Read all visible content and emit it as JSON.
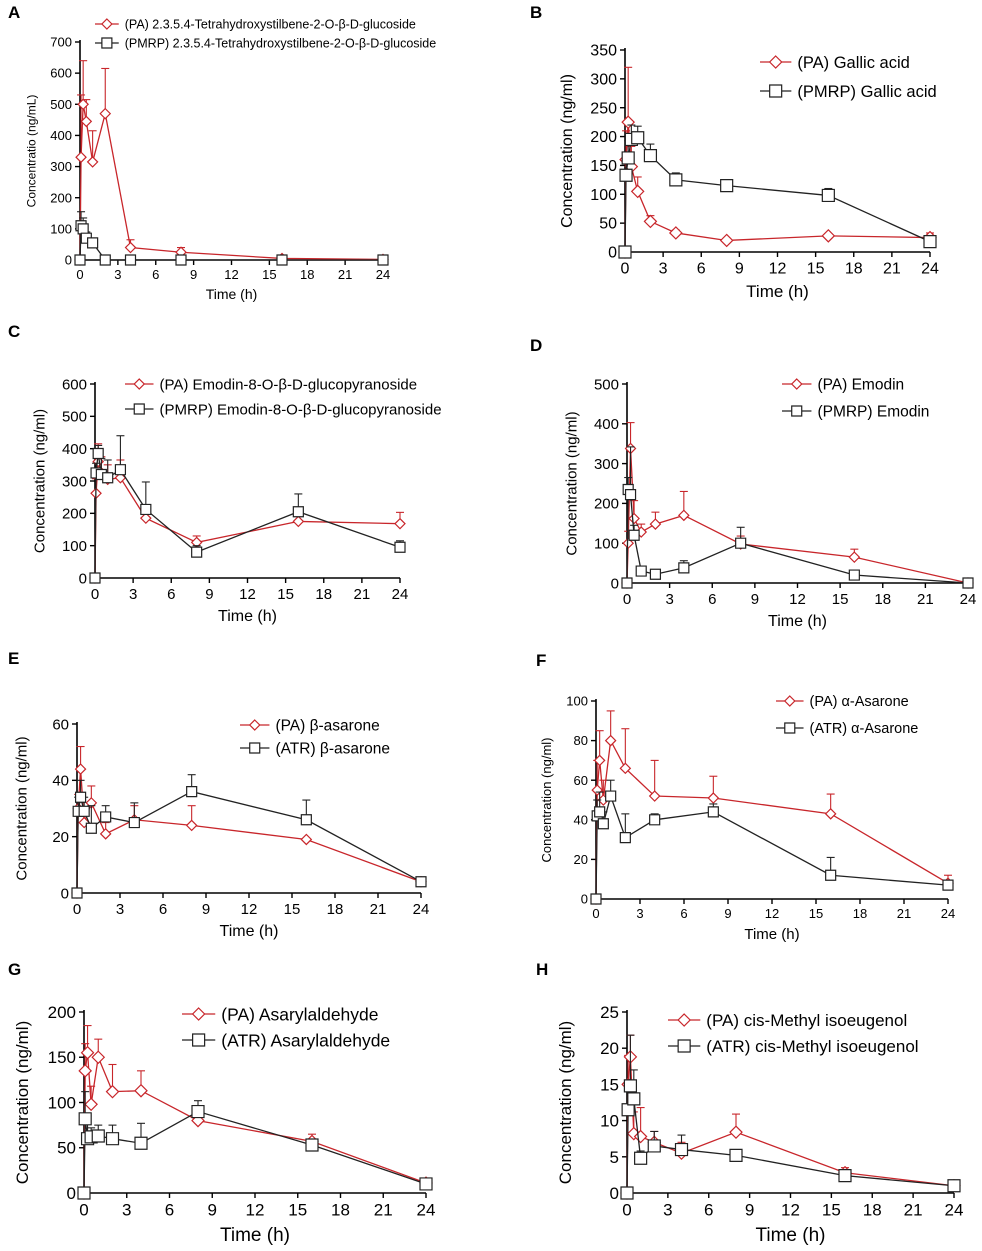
{
  "figure": {
    "colors": {
      "pa": "#c8262b",
      "other": "#222222",
      "axis": "#000000"
    },
    "chart_data": [
      {
        "letter": "A",
        "type": "line",
        "xlabel": "Time (h)",
        "ylabel": "Concentratio (ng/mL)",
        "xlim": [
          0,
          24
        ],
        "ylim": [
          0,
          700
        ],
        "xticks": [
          0,
          3,
          6,
          9,
          12,
          15,
          18,
          21,
          24
        ],
        "yticks": [
          0,
          100,
          200,
          300,
          400,
          500,
          600,
          700
        ],
        "legend": "top-left-small",
        "series": [
          {
            "name": "(PA) 2.3.5.4-Tetrahydroxystilbene-2-O-β-D-glucoside",
            "marker": "diamond",
            "color": "#c8262b",
            "x": [
              0,
              0.083,
              0.25,
              0.5,
              1,
              2,
              4,
              8,
              16,
              24
            ],
            "y": [
              0,
              330,
              500,
              445,
              315,
              470,
              40,
              25,
              5,
              2
            ],
            "err": [
              0,
              200,
              140,
              70,
              100,
              145,
              25,
              15,
              3,
              1
            ]
          },
          {
            "name": "(PMRP) 2.3.5.4-Tetrahydroxystilbene-2-O-β-D-glucoside",
            "marker": "square",
            "color": "#222222",
            "x": [
              0,
              0.083,
              0.25,
              0.5,
              1,
              2,
              4,
              8,
              16,
              24
            ],
            "y": [
              0,
              110,
              100,
              70,
              55,
              0,
              0,
              0,
              0,
              0
            ],
            "err": [
              0,
              45,
              35,
              20,
              15,
              0,
              0,
              0,
              0,
              0
            ]
          }
        ]
      },
      {
        "letter": "B",
        "type": "line",
        "xlabel": "Time (h)",
        "ylabel": "Concentration (ng/ml)",
        "xlim": [
          0,
          24
        ],
        "ylim": [
          0,
          350
        ],
        "xticks": [
          0,
          3,
          6,
          9,
          12,
          15,
          18,
          21,
          24
        ],
        "yticks": [
          0,
          50,
          100,
          150,
          200,
          250,
          300,
          350
        ],
        "legend": "top-right-large",
        "series": [
          {
            "name": "(PA) Gallic acid",
            "marker": "diamond",
            "color": "#c8262b",
            "x": [
              0,
              0.083,
              0.25,
              0.5,
              1,
              2,
              4,
              8,
              16,
              24
            ],
            "y": [
              0,
              160,
              225,
              148,
              105,
              53,
              33,
              20,
              28,
              25
            ],
            "err": [
              0,
              50,
              95,
              35,
              25,
              10,
              5,
              3,
              4,
              8
            ]
          },
          {
            "name": "(PMRP) Gallic acid",
            "marker": "square",
            "color": "#222222",
            "x": [
              0,
              0.083,
              0.25,
              0.5,
              1,
              2,
              4,
              8,
              16,
              24
            ],
            "y": [
              0,
              133,
              163,
              195,
              198,
              167,
              125,
              115,
              98,
              18
            ],
            "err": [
              0,
              30,
              30,
              25,
              20,
              20,
              12,
              10,
              12,
              5
            ]
          }
        ]
      },
      {
        "letter": "C",
        "type": "line",
        "xlabel": "Time (h)",
        "ylabel": "Concentration (ng/ml)",
        "xlim": [
          0,
          24
        ],
        "ylim": [
          0,
          600
        ],
        "xticks": [
          0,
          3,
          6,
          9,
          12,
          15,
          18,
          21,
          24
        ],
        "yticks": [
          0,
          100,
          200,
          300,
          400,
          500,
          600
        ],
        "legend": "top-wide",
        "series": [
          {
            "name": "(PA) Emodin-8-O-β-D-glucopyranoside",
            "marker": "diamond",
            "color": "#c8262b",
            "x": [
              0,
              0.083,
              0.25,
              0.5,
              1,
              2,
              4,
              8,
              16,
              24
            ],
            "y": [
              0,
              262,
              360,
              325,
              305,
              310,
              185,
              110,
              175,
              168
            ],
            "err": [
              0,
              45,
              55,
              50,
              45,
              55,
              30,
              20,
              30,
              35
            ]
          },
          {
            "name": "(PMRP) Emodin-8-O-β-D-glucopyranoside",
            "marker": "square",
            "color": "#222222",
            "x": [
              0,
              0.083,
              0.25,
              0.5,
              1,
              2,
              4,
              8,
              16,
              24
            ],
            "y": [
              0,
              325,
              385,
              320,
              310,
              335,
              212,
              80,
              205,
              95
            ],
            "err": [
              0,
              30,
              25,
              50,
              55,
              105,
              85,
              20,
              55,
              20
            ]
          }
        ]
      },
      {
        "letter": "D",
        "type": "line",
        "xlabel": "Time (h)",
        "ylabel": "Concentration (ng/ml)",
        "xlim": [
          0,
          24
        ],
        "ylim": [
          0,
          500
        ],
        "xticks": [
          0,
          3,
          6,
          9,
          12,
          15,
          18,
          21,
          24
        ],
        "yticks": [
          0,
          100,
          200,
          300,
          400,
          500
        ],
        "legend": "top-right-large",
        "series": [
          {
            "name": "(PA) Emodin",
            "marker": "diamond",
            "color": "#c8262b",
            "x": [
              0,
              0.083,
              0.25,
              0.5,
              1,
              2,
              4,
              8,
              16,
              24
            ],
            "y": [
              0,
              100,
              338,
              162,
              128,
              148,
              170,
              98,
              65,
              0
            ],
            "err": [
              0,
              30,
              65,
              45,
              20,
              30,
              60,
              20,
              20,
              0
            ]
          },
          {
            "name": "(PMRP) Emodin",
            "marker": "square",
            "color": "#222222",
            "x": [
              0,
              0.083,
              0.25,
              0.5,
              1,
              2,
              4,
              8,
              16,
              24
            ],
            "y": [
              0,
              235,
              222,
              120,
              30,
              22,
              38,
              100,
              20,
              0
            ],
            "err": [
              0,
              30,
              120,
              25,
              10,
              10,
              18,
              40,
              8,
              0
            ]
          }
        ]
      },
      {
        "letter": "E",
        "type": "line",
        "xlabel": "Time (h)",
        "ylabel": "Concentration (ng/ml)",
        "xlim": [
          0,
          24
        ],
        "ylim": [
          0,
          60
        ],
        "xticks": [
          0,
          3,
          6,
          9,
          12,
          15,
          18,
          21,
          24
        ],
        "yticks": [
          0,
          20,
          40,
          60
        ],
        "legend": "top-middle",
        "series": [
          {
            "name": "(PA) β-asarone",
            "marker": "diamond",
            "color": "#c8262b",
            "x": [
              0,
              0.083,
              0.25,
              0.5,
              1,
              2,
              4,
              8,
              16,
              24
            ],
            "y": [
              0,
              30,
              44,
              25,
              32,
              21,
              26,
              24,
              19,
              4
            ],
            "err": [
              0,
              5,
              8,
              5,
              6,
              4,
              5,
              7,
              0,
              1
            ]
          },
          {
            "name": "(ATR) β-asarone",
            "marker": "square",
            "color": "#222222",
            "x": [
              0,
              0.083,
              0.25,
              0.5,
              1,
              2,
              4,
              8,
              16,
              24
            ],
            "y": [
              0,
              29,
              34,
              29,
              23,
              27,
              25,
              36,
              26,
              4
            ],
            "err": [
              0,
              5,
              6,
              5,
              8,
              4,
              7,
              6,
              7,
              1
            ]
          }
        ]
      },
      {
        "letter": "F",
        "type": "line",
        "xlabel": "Time (h)",
        "ylabel": "Concentration (ng/ml)",
        "xlim": [
          0,
          24
        ],
        "ylim": [
          0,
          100
        ],
        "xticks": [
          0,
          3,
          6,
          9,
          12,
          15,
          18,
          21,
          24
        ],
        "yticks": [
          0,
          20,
          40,
          60,
          80,
          100
        ],
        "legend": "top-middle",
        "series": [
          {
            "name": "(PA) α-Asarone",
            "marker": "diamond",
            "color": "#c8262b",
            "x": [
              0,
              0.083,
              0.25,
              0.5,
              1,
              2,
              4,
              8,
              16,
              24
            ],
            "y": [
              0,
              55,
              70,
              50,
              80,
              66,
              52,
              51,
              43,
              8
            ],
            "err": [
              0,
              15,
              15,
              10,
              15,
              20,
              18,
              11,
              10,
              4
            ]
          },
          {
            "name": "(ATR) α-Asarone",
            "marker": "square",
            "color": "#222222",
            "x": [
              0,
              0.083,
              0.25,
              0.5,
              1,
              2,
              4,
              8,
              16,
              24
            ],
            "y": [
              0,
              42,
              44,
              38,
              52,
              31,
              40,
              44,
              12,
              7
            ],
            "err": [
              0,
              8,
              10,
              6,
              8,
              12,
              3,
              4,
              9,
              2
            ]
          }
        ]
      },
      {
        "letter": "G",
        "type": "line",
        "xlabel": "Time (h)",
        "ylabel": "Concentration (ng/ml)",
        "xlim": [
          0,
          24
        ],
        "ylim": [
          0,
          200
        ],
        "xticks": [
          0,
          3,
          6,
          9,
          12,
          15,
          18,
          21,
          24
        ],
        "yticks": [
          0,
          50,
          100,
          150,
          200
        ],
        "legend": "top-wide-large",
        "series": [
          {
            "name": "(PA) Asarylaldehyde",
            "marker": "diamond",
            "color": "#c8262b",
            "x": [
              0,
              0.083,
              0.25,
              0.5,
              1,
              2,
              4,
              8,
              16,
              24
            ],
            "y": [
              0,
              135,
              155,
              98,
              150,
              112,
              113,
              80,
              57,
              11
            ],
            "err": [
              0,
              30,
              30,
              20,
              20,
              30,
              22,
              15,
              8,
              3
            ]
          },
          {
            "name": "(ATR) Asarylaldehyde",
            "marker": "square",
            "color": "#222222",
            "x": [
              0,
              0.083,
              0.25,
              0.5,
              1,
              2,
              4,
              8,
              16,
              24
            ],
            "y": [
              0,
              82,
              60,
              62,
              63,
              60,
              55,
              90,
              53,
              10
            ],
            "err": [
              0,
              30,
              25,
              10,
              12,
              15,
              22,
              12,
              6,
              2
            ]
          }
        ]
      },
      {
        "letter": "H",
        "type": "line",
        "xlabel": "Time (h)",
        "ylabel": "Concentration (ng/ml)",
        "xlim": [
          0,
          24
        ],
        "ylim": [
          0,
          25
        ],
        "xticks": [
          0,
          3,
          6,
          9,
          12,
          15,
          18,
          21,
          24
        ],
        "yticks": [
          0,
          5,
          10,
          15,
          20,
          25
        ],
        "legend": "top-wide-large",
        "series": [
          {
            "name": "(PA) cis-Methyl isoeugenol",
            "marker": "diamond",
            "color": "#c8262b",
            "x": [
              0,
              0.083,
              0.25,
              0.5,
              1,
              2,
              4,
              8,
              16,
              24
            ],
            "y": [
              0,
              15,
              18.8,
              8.2,
              7.8,
              7,
              5.5,
              8.4,
              2.8,
              1
            ],
            "err": [
              0,
              4,
              3,
              3,
              4,
              1.5,
              1.5,
              2.5,
              0.7,
              0.3
            ]
          },
          {
            "name": "(ATR) cis-Methyl isoeugenol",
            "marker": "square",
            "color": "#222222",
            "x": [
              0,
              0.083,
              0.25,
              0.5,
              1,
              2,
              4,
              8,
              16,
              24
            ],
            "y": [
              0,
              11.5,
              14.8,
              13,
              4.8,
              6.5,
              6,
              5.2,
              2.4,
              1
            ],
            "err": [
              0,
              4,
              7,
              4,
              1,
              2,
              2,
              0.6,
              0.5,
              0.2
            ]
          }
        ]
      }
    ]
  }
}
